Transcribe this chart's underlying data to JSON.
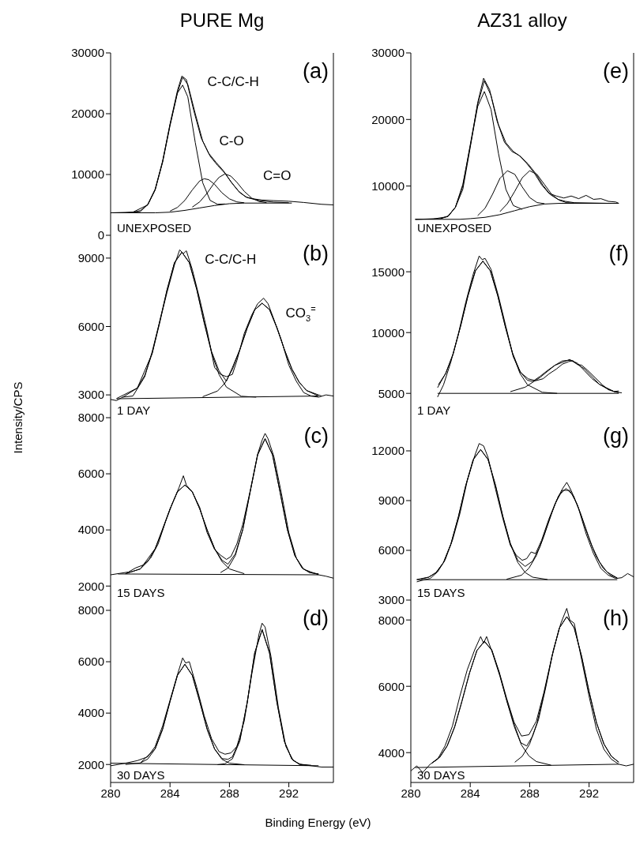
{
  "chart_data": [
    {
      "type": "line",
      "title": "PURE Mg",
      "xlim": [
        280,
        295
      ],
      "xticks": [
        280,
        284,
        288,
        292
      ],
      "ylim": [
        0,
        30000
      ],
      "yticks": [
        0,
        10000,
        20000,
        30000
      ],
      "tick_labels": "y",
      "marker": "none",
      "annotations": [
        "(a)",
        "UNEXPOSED",
        "C-C/C-H",
        "C-O",
        "C=O"
      ],
      "series": [
        {
          "color": "#000000",
          "x": [
            280,
            281,
            282,
            282.5,
            283,
            283.5,
            284,
            284.5,
            284.8,
            285.1,
            285.6,
            286.1,
            286.6,
            287.1,
            287.6,
            288.1,
            288.6,
            289.1,
            289.6,
            290.2,
            291,
            292,
            293,
            294.2,
            295
          ],
          "values": [
            3700,
            3700,
            3900,
            5100,
            7600,
            12200,
            18300,
            23800,
            26200,
            25600,
            20500,
            16000,
            13500,
            12000,
            10600,
            8800,
            7300,
            6300,
            6000,
            5800,
            5700,
            5600,
            5400,
            5100,
            5000
          ]
        },
        {
          "color": "#000000",
          "x": [
            280,
            281.5,
            282.5,
            283,
            283.5,
            284,
            284.5,
            284.85,
            285.2,
            285.7,
            286.2,
            286.7,
            287.2,
            287.7,
            288.2,
            288.7,
            289.2,
            290,
            291,
            292
          ],
          "values": [
            3700,
            3800,
            5000,
            7500,
            12000,
            18000,
            23500,
            26000,
            24800,
            20000,
            15500,
            13000,
            11500,
            10200,
            8500,
            7000,
            6200,
            5700,
            5450,
            5350
          ]
        },
        {
          "color": "#000000",
          "x": [
            281.5,
            282,
            282.5,
            283,
            283.5,
            284,
            284.5,
            284.85,
            285.2,
            285.7,
            286.2,
            286.7,
            287.2,
            287.7
          ],
          "values": [
            3780,
            4060,
            5000,
            7450,
            12100,
            18200,
            23400,
            24700,
            22750,
            15250,
            8650,
            5740,
            5100,
            5150
          ]
        },
        {
          "color": "#000000",
          "x": [
            284,
            284.5,
            285,
            285.5,
            286,
            286.3,
            286.6,
            287,
            287.5,
            288,
            288.5,
            289
          ],
          "values": [
            3980,
            4585,
            5750,
            7460,
            8950,
            9300,
            9150,
            8380,
            6980,
            5990,
            5490,
            5350
          ]
        },
        {
          "color": "#000000",
          "x": [
            285.5,
            286,
            286.5,
            287,
            287.3,
            287.7,
            288.1,
            288.5,
            289,
            289.5,
            290,
            290.5
          ],
          "values": [
            4640,
            5500,
            6930,
            8670,
            9530,
            10100,
            9730,
            8720,
            7230,
            6120,
            5560,
            5360
          ]
        },
        {
          "color": "#000000",
          "x": [
            280,
            283,
            284,
            285,
            286,
            287,
            288,
            289,
            290,
            292.2
          ],
          "values": [
            3700,
            3700,
            3800,
            4100,
            4500,
            4900,
            5200,
            5300,
            5300,
            5300
          ]
        }
      ]
    },
    {
      "type": "line",
      "title": "AZ31 alloy",
      "xlim": [
        280,
        295
      ],
      "xticks": [
        280,
        284,
        288,
        292
      ],
      "ylim": [
        2600,
        30000
      ],
      "yticks": [
        10000,
        20000,
        30000
      ],
      "tick_labels": "y",
      "marker": "none",
      "annotations": [
        "(e)",
        "UNEXPOSED"
      ],
      "series": [
        {
          "color": "#000000",
          "x": [
            280.3,
            281.5,
            282.5,
            283,
            283.5,
            284,
            284.5,
            284.9,
            285.3,
            285.8,
            286.3,
            286.8,
            287.3,
            287.8,
            288.3,
            288.8,
            289.3,
            289.8,
            290.3,
            290.8,
            291.3,
            291.8,
            292.3,
            292.8,
            293.3,
            293.8,
            294
          ],
          "values": [
            5000,
            5050,
            5400,
            6800,
            9500,
            15800,
            22500,
            26200,
            24500,
            19800,
            16600,
            15200,
            14600,
            13400,
            12000,
            10200,
            8900,
            8500,
            8200,
            8500,
            8100,
            8600,
            8000,
            8100,
            7700,
            7600,
            7400
          ]
        },
        {
          "color": "#000000",
          "x": [
            280.3,
            282,
            282.5,
            283,
            283.5,
            284,
            284.5,
            284.95,
            285.4,
            285.9,
            286.4,
            286.9,
            287.4,
            287.9,
            288.4,
            288.9,
            289.4,
            289.9,
            290.4,
            291,
            293.5
          ],
          "values": [
            5000,
            5100,
            5470,
            6800,
            10000,
            16200,
            22300,
            25800,
            23600,
            19200,
            16500,
            15200,
            14400,
            13300,
            11900,
            10100,
            8700,
            8000,
            7700,
            7500,
            7400
          ]
        },
        {
          "color": "#000000",
          "x": [
            282,
            282.5,
            283,
            283.5,
            284,
            284.5,
            284.95,
            285.4,
            285.9,
            286.4,
            286.9,
            287.5
          ],
          "values": [
            5100,
            5470,
            6800,
            10250,
            16000,
            21950,
            24200,
            21500,
            14900,
            9500,
            7070,
            6500
          ]
        },
        {
          "color": "#000000",
          "x": [
            284.5,
            285,
            285.5,
            286,
            286.5,
            287,
            287.5,
            288,
            288.5,
            289
          ],
          "values": [
            5560,
            6670,
            8760,
            11160,
            12300,
            11760,
            9860,
            8270,
            7510,
            7350
          ]
        },
        {
          "color": "#000000",
          "x": [
            286,
            286.5,
            287,
            287.5,
            288,
            288.5,
            289,
            289.5,
            290,
            290.5,
            291
          ],
          "values": [
            6160,
            7350,
            9220,
            11240,
            12300,
            11740,
            10220,
            8700,
            7860,
            7500,
            7420
          ]
        },
        {
          "color": "#000000",
          "x": [
            280.3,
            283.3,
            284,
            285,
            286,
            287,
            288,
            289,
            290,
            294
          ],
          "values": [
            5000,
            5000,
            5100,
            5300,
            5700,
            6300,
            6900,
            7300,
            7400,
            7400
          ]
        }
      ]
    },
    {
      "type": "line",
      "ylabel": "Intensity/CPS",
      "xlim": [
        280,
        295
      ],
      "xticks": [
        280,
        284,
        288,
        292
      ],
      "ylim": [
        2000,
        10000
      ],
      "yticks": [
        3000,
        6000,
        9000
      ],
      "tick_labels": "y",
      "marker": "none",
      "annotations": [
        "(b)",
        "1 DAY",
        "C-C/C-H",
        "CO$_{3}$$^{=}$"
      ],
      "series": [
        {
          "color": "#000000",
          "x": [
            280,
            280.4,
            280.8,
            281.5,
            282.3,
            282.8,
            283.3,
            283.8,
            284.3,
            284.65,
            284.9,
            285.1,
            285.5,
            286,
            286.5,
            287,
            287.4,
            287.8,
            288.2,
            288.5,
            289,
            289.5,
            289.9,
            290.3,
            290.6,
            291,
            291.5,
            292,
            292.5,
            293,
            293.5,
            294,
            294.5,
            295
          ],
          "values": [
            2800,
            2750,
            2900,
            2950,
            3800,
            4900,
            6200,
            7500,
            8700,
            9360,
            9200,
            9320,
            8500,
            7200,
            5800,
            4200,
            3900,
            3800,
            3900,
            4500,
            5700,
            6500,
            7000,
            7240,
            7000,
            6300,
            5400,
            4300,
            3600,
            3100,
            2950,
            2900,
            3000,
            2950
          ]
        },
        {
          "color": "#000000",
          "x": [
            280.4,
            281.8,
            282.8,
            283.8,
            284.3,
            284.8,
            285.3,
            285.8,
            286.3,
            286.8,
            287.3,
            287.8,
            288.2,
            288.7,
            289.2,
            289.7,
            290.2,
            290.7,
            291.2,
            291.7,
            292.2,
            292.7,
            293.2,
            294
          ],
          "values": [
            2840,
            3300,
            4820,
            7610,
            8800,
            9260,
            8800,
            7630,
            6180,
            4900,
            4050,
            3600,
            4200,
            4990,
            5940,
            6730,
            7020,
            6740,
            5940,
            4990,
            4140,
            3550,
            3190,
            2950
          ]
        },
        {
          "color": "#000000",
          "x": [
            280.8,
            281.8,
            282.3,
            282.8,
            283.3,
            283.8,
            284.3,
            284.8,
            285.3,
            285.8,
            286.3,
            286.8,
            287.3,
            287.8,
            288.8,
            289.8
          ],
          "values": [
            2890,
            3300,
            3860,
            4820,
            6140,
            7610,
            8800,
            9260,
            8800,
            7620,
            6160,
            4840,
            3890,
            3340,
            2940,
            2900
          ]
        },
        {
          "color": "#000000",
          "x": [
            286.2,
            287.2,
            287.7,
            288.2,
            288.7,
            289.2,
            289.7,
            290.2,
            290.7,
            291.2,
            291.7,
            292.2,
            292.7,
            293.2,
            294.2
          ],
          "values": [
            2920,
            3170,
            3520,
            4120,
            4970,
            5930,
            6730,
            7020,
            6740,
            5940,
            4990,
            4140,
            3550,
            3190,
            2950
          ]
        },
        {
          "color": "#000000",
          "x": [
            280.4,
            294
          ],
          "values": [
            2830,
            2950
          ]
        }
      ]
    },
    {
      "type": "line",
      "xlim": [
        280,
        295
      ],
      "xticks": [
        280,
        284,
        288,
        292
      ],
      "ylim": [
        3000,
        18000
      ],
      "yticks": [
        5000,
        10000,
        15000
      ],
      "tick_labels": "y",
      "marker": "none",
      "annotations": [
        "(f)",
        "1 DAY"
      ],
      "series": [
        {
          "color": "#000000",
          "x": [
            281.8,
            282.2,
            282.7,
            283.2,
            283.7,
            284.2,
            284.6,
            284.8,
            285,
            285.4,
            285.9,
            286.4,
            286.9,
            287.4,
            287.9,
            288.4,
            288.9,
            289.3,
            289.8,
            290.2,
            290.6,
            290.9,
            291.2,
            291.5,
            291.9,
            292.4,
            292.9,
            293.3,
            293.7,
            294
          ],
          "values": [
            4700,
            5700,
            7600,
            9900,
            12500,
            14800,
            16300,
            16000,
            16100,
            15200,
            13000,
            10500,
            8000,
            6700,
            6200,
            6040,
            6200,
            6600,
            7000,
            7400,
            7600,
            7700,
            7380,
            7320,
            6900,
            6300,
            5700,
            5300,
            5150,
            5200
          ]
        },
        {
          "color": "#000000",
          "x": [
            281.8,
            282.35,
            282.85,
            283.35,
            283.85,
            284.35,
            284.85,
            285.35,
            285.85,
            286.35,
            286.85,
            287.35,
            287.85,
            288.2,
            288.7,
            289.2,
            289.7,
            290.2,
            290.7,
            291.2,
            291.7,
            292.2,
            292.7,
            293.2,
            293.7,
            294
          ],
          "values": [
            5470,
            6650,
            8260,
            10530,
            13040,
            15090,
            15880,
            15090,
            13050,
            10560,
            8320,
            6790,
            6080,
            5980,
            6400,
            6880,
            7310,
            7670,
            7720,
            7500,
            6850,
            6210,
            5740,
            5390,
            5140,
            5060
          ]
        },
        {
          "color": "#000000",
          "x": [
            281.85,
            282.35,
            282.85,
            283.35,
            283.85,
            284.35,
            284.85,
            285.35,
            285.85,
            286.35,
            286.85,
            287.35,
            287.85,
            288.85,
            289.85
          ],
          "values": [
            5710,
            6640,
            8250,
            10520,
            13030,
            15080,
            15870,
            15080,
            13030,
            10520,
            8250,
            6640,
            5710,
            5090,
            5000
          ]
        },
        {
          "color": "#000000",
          "x": [
            286.7,
            287.7,
            288.7,
            289.7,
            290.7,
            291.7,
            292.7,
            293.7,
            294.2
          ],
          "values": [
            5140,
            5510,
            6310,
            7310,
            7790,
            7010,
            5740,
            5140,
            5040
          ]
        },
        {
          "color": "#000000",
          "x": [
            281.8,
            294
          ],
          "values": [
            5000,
            5000
          ]
        }
      ]
    },
    {
      "type": "line",
      "xlim": [
        280,
        295
      ],
      "xticks": [
        280,
        284,
        288,
        292
      ],
      "ylim": [
        1500,
        8000
      ],
      "yticks": [
        2000,
        4000,
        6000,
        8000
      ],
      "tick_labels": "y",
      "marker": "none",
      "annotations": [
        "(c)",
        "15 DAYS"
      ],
      "series": [
        {
          "color": "#000000",
          "x": [
            280,
            280.6,
            281.2,
            281.7,
            282.2,
            282.7,
            283.2,
            283.7,
            284.2,
            284.6,
            284.9,
            285.1,
            285.5,
            286,
            286.5,
            287,
            287.4,
            287.8,
            288.1,
            288.5,
            288.9,
            289.4,
            289.9,
            290.2,
            290.4,
            290.6,
            291,
            291.5,
            292,
            292.5,
            293,
            293.5,
            294,
            294.5,
            295
          ],
          "values": [
            2400,
            2450,
            2500,
            2650,
            2750,
            3000,
            3500,
            4300,
            5000,
            5500,
            5930,
            5600,
            5350,
            4800,
            3900,
            3300,
            3100,
            2950,
            3050,
            3500,
            4200,
            5400,
            6700,
            7200,
            7440,
            7250,
            6600,
            5300,
            3900,
            3000,
            2600,
            2500,
            2400,
            2350,
            2280
          ]
        },
        {
          "color": "#000000",
          "x": [
            281,
            282,
            283,
            284,
            284.5,
            285,
            285.5,
            286,
            286.5,
            287,
            287.5,
            287.9,
            288.4,
            288.9,
            289.4,
            289.9,
            290.4,
            290.9,
            291.4,
            291.9,
            292.4,
            292.9,
            293.4,
            294
          ],
          "values": [
            2440,
            2610,
            3330,
            4750,
            5360,
            5600,
            5360,
            4750,
            4000,
            3340,
            2920,
            2780,
            3150,
            4020,
            5370,
            6680,
            7250,
            6680,
            5370,
            4010,
            3090,
            2640,
            2480,
            2430
          ]
        },
        {
          "color": "#000000",
          "x": [
            281,
            282,
            282.5,
            283,
            283.5,
            284,
            284.5,
            285,
            285.5,
            286,
            286.5,
            287,
            287.5,
            288,
            289
          ],
          "values": [
            2440,
            2610,
            2870,
            3330,
            4000,
            4750,
            5360,
            5600,
            5360,
            4750,
            4000,
            3330,
            2870,
            2610,
            2440
          ]
        },
        {
          "color": "#000000",
          "x": [
            287.4,
            287.9,
            288.4,
            288.9,
            289.4,
            289.9,
            290.4,
            290.9,
            291.4,
            291.9,
            292.4,
            292.9,
            293.4,
            294
          ],
          "values": [
            2480,
            2640,
            3090,
            4010,
            5370,
            6680,
            7250,
            6680,
            5370,
            4010,
            3090,
            2640,
            2480,
            2430
          ]
        },
        {
          "color": "#000000",
          "x": [
            280.5,
            294
          ],
          "values": [
            2430,
            2400
          ]
        }
      ]
    },
    {
      "type": "line",
      "xlim": [
        280,
        295
      ],
      "xticks": [
        280,
        284,
        288,
        292
      ],
      "ylim": [
        3000,
        14000
      ],
      "yticks": [
        3000,
        6000,
        9000,
        12000
      ],
      "tick_labels": "y",
      "marker": "none",
      "annotations": [
        "(g)",
        "15 DAYS"
      ],
      "series": [
        {
          "color": "#000000",
          "x": [
            280.4,
            280.8,
            281.3,
            281.8,
            282.3,
            282.8,
            283.3,
            283.8,
            284.3,
            284.6,
            284.9,
            285.2,
            285.7,
            286.2,
            286.7,
            287.1,
            287.5,
            287.8,
            288.1,
            288.4,
            288.8,
            289.3,
            289.8,
            290.2,
            290.5,
            290.8,
            291.3,
            291.8,
            292.3,
            292.8,
            293.3,
            293.8,
            294.2,
            294.6,
            295
          ],
          "values": [
            4100,
            4200,
            4300,
            4700,
            5400,
            6600,
            8200,
            10200,
            11700,
            12440,
            12300,
            11600,
            9700,
            7900,
            6300,
            5700,
            5400,
            5500,
            5900,
            5800,
            6600,
            7900,
            9000,
            9700,
            10100,
            9600,
            8500,
            7000,
            5800,
            4900,
            4500,
            4300,
            4350,
            4600,
            4400
          ]
        },
        {
          "color": "#000000",
          "x": [
            280.4,
            281.2,
            281.7,
            282.2,
            282.7,
            283.2,
            283.7,
            284.2,
            284.7,
            285.2,
            285.7,
            286.2,
            286.7,
            287.2,
            287.7,
            288.2,
            288.7,
            289.2,
            289.7,
            290.2,
            290.7,
            291.2,
            291.7,
            292.2,
            292.7,
            293.2,
            293.9
          ],
          "values": [
            4240,
            4380,
            4660,
            5270,
            6390,
            8020,
            9920,
            11470,
            12080,
            11480,
            9930,
            8040,
            6420,
            5400,
            5030,
            5350,
            6230,
            7510,
            8780,
            9620,
            9620,
            8780,
            7510,
            6250,
            5300,
            4700,
            4330
          ]
        },
        {
          "color": "#000000",
          "x": [
            280.7,
            281.2,
            281.7,
            282.2,
            282.7,
            283.2,
            283.7,
            284.2,
            284.7,
            285.2,
            285.7,
            286.2,
            286.7,
            287.2,
            287.7,
            288.2,
            289.2
          ],
          "values": [
            4270,
            4380,
            4660,
            5270,
            6390,
            8020,
            9920,
            11470,
            12080,
            11470,
            9920,
            8020,
            6390,
            5270,
            4660,
            4380,
            4240
          ]
        },
        {
          "color": "#000000",
          "x": [
            286.45,
            287.45,
            287.95,
            288.45,
            288.95,
            289.45,
            289.95,
            290.45,
            290.95,
            291.45,
            291.95,
            292.45,
            292.95,
            293.45,
            293.9
          ],
          "values": [
            4260,
            4500,
            4920,
            5680,
            6830,
            8170,
            9300,
            9730,
            9300,
            8170,
            6830,
            5680,
            4920,
            4500,
            4330
          ]
        },
        {
          "color": "#000000",
          "x": [
            280.4,
            293.9
          ],
          "values": [
            4230,
            4230
          ]
        }
      ]
    },
    {
      "type": "line",
      "xlabel": "Binding Energy (eV)",
      "xlim": [
        280,
        295
      ],
      "xticks": [
        280,
        284,
        288,
        292
      ],
      "ylim": [
        1300,
        8400
      ],
      "yticks": [
        2000,
        4000,
        6000,
        8000
      ],
      "marker": "none",
      "annotations": [
        "(d)",
        "30 DAYS"
      ],
      "series": [
        {
          "color": "#000000",
          "x": [
            280,
            281,
            281.8,
            282.5,
            283,
            283.5,
            284,
            284.5,
            284.85,
            285.05,
            285.3,
            285.8,
            286.3,
            286.8,
            287.3,
            287.7,
            288.1,
            288.5,
            289,
            289.5,
            290,
            290.2,
            290.4,
            290.8,
            291.3,
            291.8,
            292.3,
            292.8,
            293.5,
            294.2,
            295
          ],
          "values": [
            1950,
            2050,
            2150,
            2300,
            2700,
            3500,
            4500,
            5500,
            6150,
            5950,
            6000,
            5000,
            3900,
            3000,
            2500,
            2400,
            2450,
            2700,
            3700,
            5500,
            7100,
            7500,
            7350,
            6200,
            4200,
            2700,
            2150,
            2000,
            1950,
            1900,
            1900
          ]
        },
        {
          "color": "#000000",
          "x": [
            281,
            282,
            283,
            283.5,
            284,
            284.5,
            285,
            285.5,
            286,
            286.5,
            287,
            287.5,
            287.9,
            288.2,
            288.7,
            289.2,
            289.7,
            290.2,
            290.7,
            291.2,
            291.7,
            292.2,
            292.7,
            293.5
          ],
          "values": [
            2000,
            2060,
            2610,
            3370,
            4450,
            5470,
            5900,
            5470,
            4450,
            3370,
            2610,
            2230,
            2200,
            2300,
            2960,
            4420,
            6340,
            7250,
            6340,
            4410,
            2900,
            2210,
            2010,
            1970
          ]
        },
        {
          "color": "#000000",
          "x": [
            282,
            282.5,
            283,
            283.5,
            284,
            284.5,
            285,
            285.5,
            286,
            286.5,
            287,
            287.5,
            288,
            289
          ],
          "values": [
            2060,
            2210,
            2610,
            3370,
            4450,
            5470,
            5900,
            5470,
            4450,
            3370,
            2600,
            2200,
            2050,
            1990
          ]
        },
        {
          "color": "#000000",
          "x": [
            287.2,
            287.7,
            288.2,
            288.7,
            289.2,
            289.7,
            290.2,
            290.7,
            291.2,
            291.7,
            292.2,
            292.7,
            293.2
          ],
          "values": [
            1990,
            2030,
            2220,
            2910,
            4420,
            6340,
            7250,
            6340,
            4410,
            2900,
            2210,
            2010,
            1970
          ]
        },
        {
          "color": "#000000",
          "x": [
            280,
            294
          ],
          "values": [
            2050,
            1950
          ]
        }
      ]
    },
    {
      "type": "line",
      "xlim": [
        280,
        295
      ],
      "xticks": [
        280,
        284,
        288,
        292
      ],
      "ylim": [
        3100,
        8600
      ],
      "yticks": [
        4000,
        6000,
        8000
      ],
      "marker": "none",
      "annotations": [
        "(h)",
        "30 DAYS"
      ],
      "series": [
        {
          "color": "#000000",
          "x": [
            280,
            280.4,
            280.8,
            281.3,
            281.8,
            282.3,
            282.8,
            283.3,
            283.8,
            284.3,
            284.7,
            284.9,
            285.1,
            285.5,
            286,
            286.5,
            287,
            287.4,
            287.8,
            288.2,
            288.6,
            289.1,
            289.6,
            290.1,
            290.5,
            290.7,
            291,
            291.5,
            292,
            292.5,
            293,
            293.5,
            294,
            294.5,
            295
          ],
          "values": [
            3450,
            3600,
            3400,
            3650,
            3800,
            4200,
            4800,
            5700,
            6500,
            7100,
            7500,
            7300,
            7500,
            7000,
            6300,
            5500,
            4800,
            4300,
            4200,
            4500,
            5000,
            6000,
            7100,
            7900,
            8350,
            8000,
            7900,
            6800,
            5700,
            4700,
            4100,
            3800,
            3650,
            3600,
            3650
          ]
        },
        {
          "color": "#000000",
          "x": [
            281.45,
            281.95,
            282.45,
            282.95,
            283.45,
            283.95,
            284.45,
            284.95,
            285.45,
            285.95,
            286.45,
            286.95,
            287.45,
            287.95,
            288.45,
            288.95,
            289.5,
            290,
            290.5,
            291,
            291.5,
            292,
            292.5,
            293,
            293.5,
            294
          ],
          "values": [
            3700,
            3870,
            4210,
            4780,
            5570,
            6400,
            7080,
            7360,
            7100,
            6430,
            5640,
            4920,
            4500,
            4540,
            4950,
            5800,
            6900,
            7760,
            8100,
            7760,
            6900,
            5840,
            4900,
            4260,
            3890,
            3710
          ]
        },
        {
          "color": "#000000",
          "x": [
            281.45,
            281.95,
            282.45,
            282.95,
            283.45,
            283.95,
            284.45,
            284.95,
            285.45,
            285.95,
            286.45,
            286.95,
            287.45,
            287.95,
            288.45,
            289.45
          ],
          "values": [
            3690,
            3860,
            4200,
            4770,
            5560,
            6400,
            7080,
            7350,
            7090,
            6410,
            5580,
            4800,
            4230,
            3900,
            3730,
            3620
          ]
        },
        {
          "color": "#000000",
          "x": [
            287,
            287.5,
            288,
            288.5,
            289,
            289.5,
            290,
            290.5,
            291,
            291.5,
            292,
            292.5,
            293,
            293.5,
            294
          ],
          "values": [
            3710,
            3890,
            4260,
            4900,
            5840,
            6900,
            7760,
            8100,
            7760,
            6900,
            5840,
            4900,
            4260,
            3890,
            3710
          ]
        },
        {
          "color": "#000000",
          "x": [
            280.3,
            294
          ],
          "values": [
            3550,
            3650
          ]
        }
      ]
    }
  ]
}
